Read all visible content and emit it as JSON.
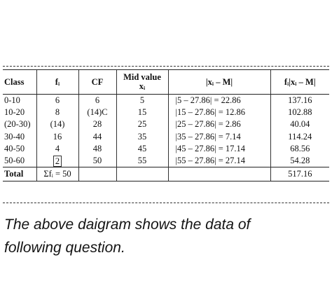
{
  "table": {
    "headers": {
      "class": "Class",
      "fi": "fᵢ",
      "cf": "CF",
      "mid_line1": "Mid value",
      "mid_line2": "xᵢ",
      "dev": "|xᵢ – M|",
      "fdev": "fᵢ|xᵢ – M|"
    },
    "rows": [
      {
        "class": "0-10",
        "fi": "6",
        "cf": "6",
        "mid": "5",
        "dev": "|5 – 27.86| = 22.86",
        "fdev": "137.16"
      },
      {
        "class": "10-20",
        "fi": "8",
        "cf": "(14)C",
        "mid": "15",
        "dev": "|15 – 27.86| = 12.86",
        "fdev": "102.88"
      },
      {
        "class": "(20-30)",
        "fi": "(14)",
        "cf": "28",
        "mid": "25",
        "dev": "|25 – 27.86| = 2.86",
        "fdev": "40.04"
      },
      {
        "class": "30-40",
        "fi": "16",
        "cf": "44",
        "mid": "35",
        "dev": "|35 – 27.86| = 7.14",
        "fdev": "114.24"
      },
      {
        "class": "40-50",
        "fi": "4",
        "cf": "48",
        "mid": "45",
        "dev": "|45 – 27.86| = 17.14",
        "fdev": "68.56"
      },
      {
        "class": "50-60",
        "fi": "2",
        "cf": "50",
        "mid": "55",
        "dev": "|55 – 27.86| = 27.14",
        "fdev": "54.28"
      }
    ],
    "total": {
      "label": "Total",
      "fi": "Σfᵢ = 50",
      "fdev": "517.16"
    }
  },
  "question": {
    "line1": "The above daigram shows the data of",
    "line2": "following question."
  }
}
